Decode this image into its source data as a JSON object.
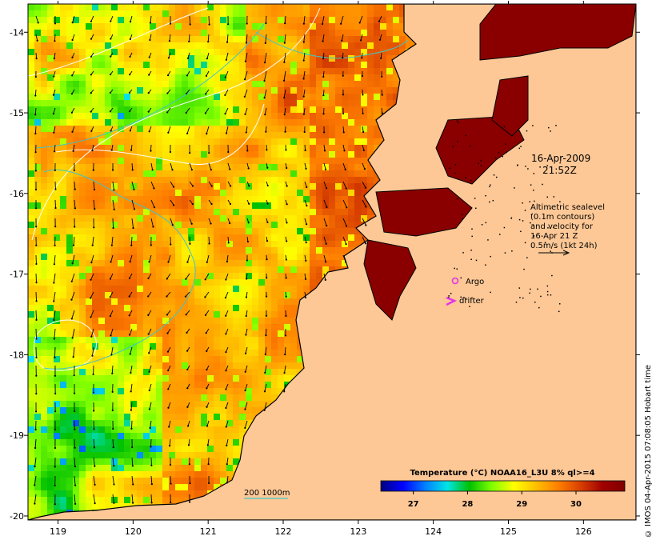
{
  "map": {
    "timestamp_date": "16-Apr-2009",
    "timestamp_time": "21:52Z",
    "altimetry_legend": [
      "Altimetric sealevel",
      "(0.1m contours)",
      "and velocity for",
      "16-Apr 21 Z",
      "0.5m/s (1kt 24h)"
    ],
    "argo_label": "Argo",
    "drifter_label": "drifter",
    "bathymetry_label": "200 1000m",
    "colorbar_title": "Temperature (°C) NOAA16_L3U 8% ql>=4",
    "colorbar_ticks": [
      "27",
      "28",
      "29",
      "30"
    ],
    "credit": "© IMOS 04-Apr-2015 07:08:05 Hobart time",
    "lon_ticks": [
      "119",
      "120",
      "121",
      "122",
      "123",
      "124",
      "125",
      "126"
    ],
    "lat_ticks": [
      "-14",
      "-15",
      "-16",
      "-17",
      "-18",
      "-19",
      "-20"
    ],
    "lon_range": [
      118.6,
      126.7
    ],
    "lat_range": [
      -20.05,
      -13.65
    ],
    "colors": {
      "land": "#fdc896",
      "coast": "#000000",
      "contour_sealevel": "#ffffff",
      "contour_bathymetry": "#3ec7c7",
      "argo": "#e633e6",
      "drifter": "#e633e6",
      "colormap": [
        "#00007f",
        "#0000ff",
        "#007fff",
        "#00e5e5",
        "#00c000",
        "#7fff00",
        "#ffff00",
        "#ffbf00",
        "#ff7f00",
        "#d84000",
        "#a00000",
        "#800000"
      ]
    }
  }
}
